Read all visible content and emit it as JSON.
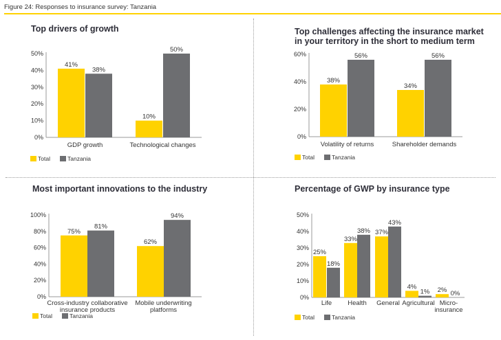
{
  "figure": {
    "caption": "Figure 24: Responses to insurance survey: Tanzania"
  },
  "colors": {
    "total": "#ffd200",
    "tanzania": "#6d6e71",
    "axis": "#999999"
  },
  "legend": [
    "Total",
    "Tanzania"
  ],
  "chart_data": [
    {
      "type": "bar",
      "title": [
        "Top drivers of growth"
      ],
      "categories": [
        [
          "GDP growth"
        ],
        [
          "Technological changes"
        ]
      ],
      "series": [
        {
          "name": "Total",
          "values": [
            41,
            10
          ]
        },
        {
          "name": "Tanzania",
          "values": [
            38,
            50
          ]
        }
      ],
      "yticks": [
        "0%",
        "10%",
        "20%",
        "30%",
        "40%",
        "50%"
      ],
      "ylim": [
        0,
        50
      ],
      "value_labels": [
        [
          "41%",
          "10%"
        ],
        [
          "38%",
          "50%"
        ]
      ],
      "xlabel": "",
      "ylabel": "",
      "legend_position": "bottom-left",
      "grid": false
    },
    {
      "type": "bar",
      "title": [
        "Top challenges affecting the insurance market",
        "in your territory in the short to medium term"
      ],
      "categories": [
        [
          "Volatility of returns"
        ],
        [
          "Shareholder demands"
        ]
      ],
      "series": [
        {
          "name": "Total",
          "values": [
            38,
            34
          ]
        },
        {
          "name": "Tanzania",
          "values": [
            56,
            56
          ]
        }
      ],
      "yticks": [
        "0%",
        "20%",
        "40%",
        "60%"
      ],
      "ylim": [
        0,
        60
      ],
      "value_labels": [
        [
          "38%",
          "34%"
        ],
        [
          "56%",
          "56%"
        ]
      ],
      "xlabel": "",
      "ylabel": "",
      "legend_position": "bottom-left",
      "grid": false
    },
    {
      "type": "bar",
      "title": [
        "Most important innovations to the industry"
      ],
      "categories": [
        [
          "Cross-industry collaborative",
          "insurance products"
        ],
        [
          "Mobile underwriting",
          "platforms"
        ]
      ],
      "series": [
        {
          "name": "Total",
          "values": [
            75,
            62
          ]
        },
        {
          "name": "Tanzania",
          "values": [
            81,
            94
          ]
        }
      ],
      "yticks": [
        "0%",
        "20%",
        "40%",
        "60%",
        "80%",
        "100%"
      ],
      "ylim": [
        0,
        100
      ],
      "value_labels": [
        [
          "75%",
          "62%"
        ],
        [
          "81%",
          "94%"
        ]
      ],
      "xlabel": "",
      "ylabel": "",
      "legend_position": "bottom-left",
      "grid": false
    },
    {
      "type": "bar",
      "title": [
        "Percentage of GWP by insurance type"
      ],
      "categories": [
        [
          "Life"
        ],
        [
          "Health"
        ],
        [
          "General"
        ],
        [
          "Agricultural"
        ],
        [
          "Micro-",
          "insurance"
        ]
      ],
      "series": [
        {
          "name": "Total",
          "values": [
            25,
            33,
            37,
            4,
            2
          ]
        },
        {
          "name": "Tanzania",
          "values": [
            18,
            38,
            43,
            1,
            0
          ]
        }
      ],
      "yticks": [
        "0%",
        "10%",
        "20%",
        "30%",
        "40%",
        "50%"
      ],
      "ylim": [
        0,
        50
      ],
      "value_labels": [
        [
          "25%",
          "33%",
          "37%",
          "4%",
          "2%"
        ],
        [
          "18%",
          "38%",
          "43%",
          "1%",
          "0%"
        ]
      ],
      "xlabel": "",
      "ylabel": "",
      "legend_position": "bottom-left",
      "grid": false
    }
  ]
}
